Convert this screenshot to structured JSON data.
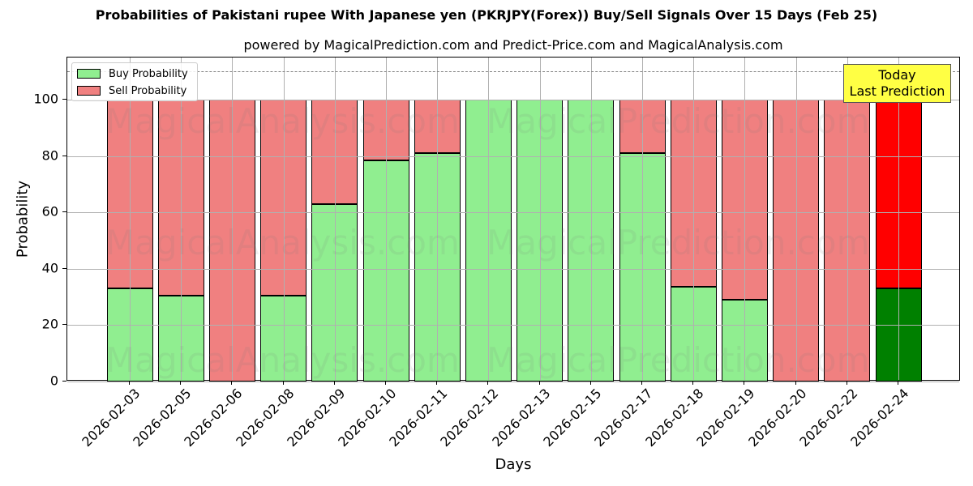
{
  "title": "Probabilities of Pakistani rupee With Japanese yen (PKRJPY(Forex)) Buy/Sell Signals Over 15 Days (Feb 25)",
  "subtitle": "powered by MagicalPrediction.com and Predict-Price.com and MagicalAnalysis.com",
  "legend": {
    "buy_label": "Buy Probability",
    "sell_label": "Sell Probability"
  },
  "annotation": {
    "line1": "Today",
    "line2": "Last Prediction"
  },
  "watermarks": [
    "MagicalAnalysis.com",
    "MagicalPrediction.com"
  ],
  "colors": {
    "buy": "#90ee90",
    "sell": "#f08080",
    "buy_today": "#008000",
    "sell_today": "#ff0000",
    "annotation_bg": "#ffff44"
  },
  "chart_data": {
    "type": "bar",
    "stacked": true,
    "title": "Probabilities of Pakistani rupee With Japanese yen (PKRJPY(Forex)) Buy/Sell Signals Over 15 Days (Feb 25)",
    "subtitle": "powered by MagicalPrediction.com and Predict-Price.com and MagicalAnalysis.com",
    "xlabel": "Days",
    "ylabel": "Probability",
    "ylim": [
      0,
      115
    ],
    "yticks": [
      0,
      20,
      40,
      60,
      80,
      100
    ],
    "reference_line": 110,
    "grid": true,
    "legend_position": "upper left",
    "categories": [
      "2026-02-03",
      "2026-02-05",
      "2026-02-06",
      "2026-02-08",
      "2026-02-09",
      "2026-02-10",
      "2026-02-11",
      "2026-02-12",
      "2026-02-13",
      "2026-02-15",
      "2026-02-17",
      "2026-02-18",
      "2026-02-19",
      "2026-02-20",
      "2026-02-22",
      "2026-02-24"
    ],
    "series": [
      {
        "name": "Buy Probability",
        "values": [
          33,
          30.5,
          0,
          30.5,
          63,
          78.5,
          81,
          100,
          100,
          100,
          81,
          33.5,
          29,
          0,
          0,
          33
        ]
      },
      {
        "name": "Sell Probability",
        "values": [
          67,
          69.5,
          100,
          69.5,
          37,
          21.5,
          19,
          0,
          0,
          0,
          19,
          66.5,
          71,
          100,
          100,
          67
        ]
      }
    ],
    "annotations": [
      {
        "text": "Today\nLast Prediction",
        "x": "2026-02-24"
      }
    ]
  }
}
